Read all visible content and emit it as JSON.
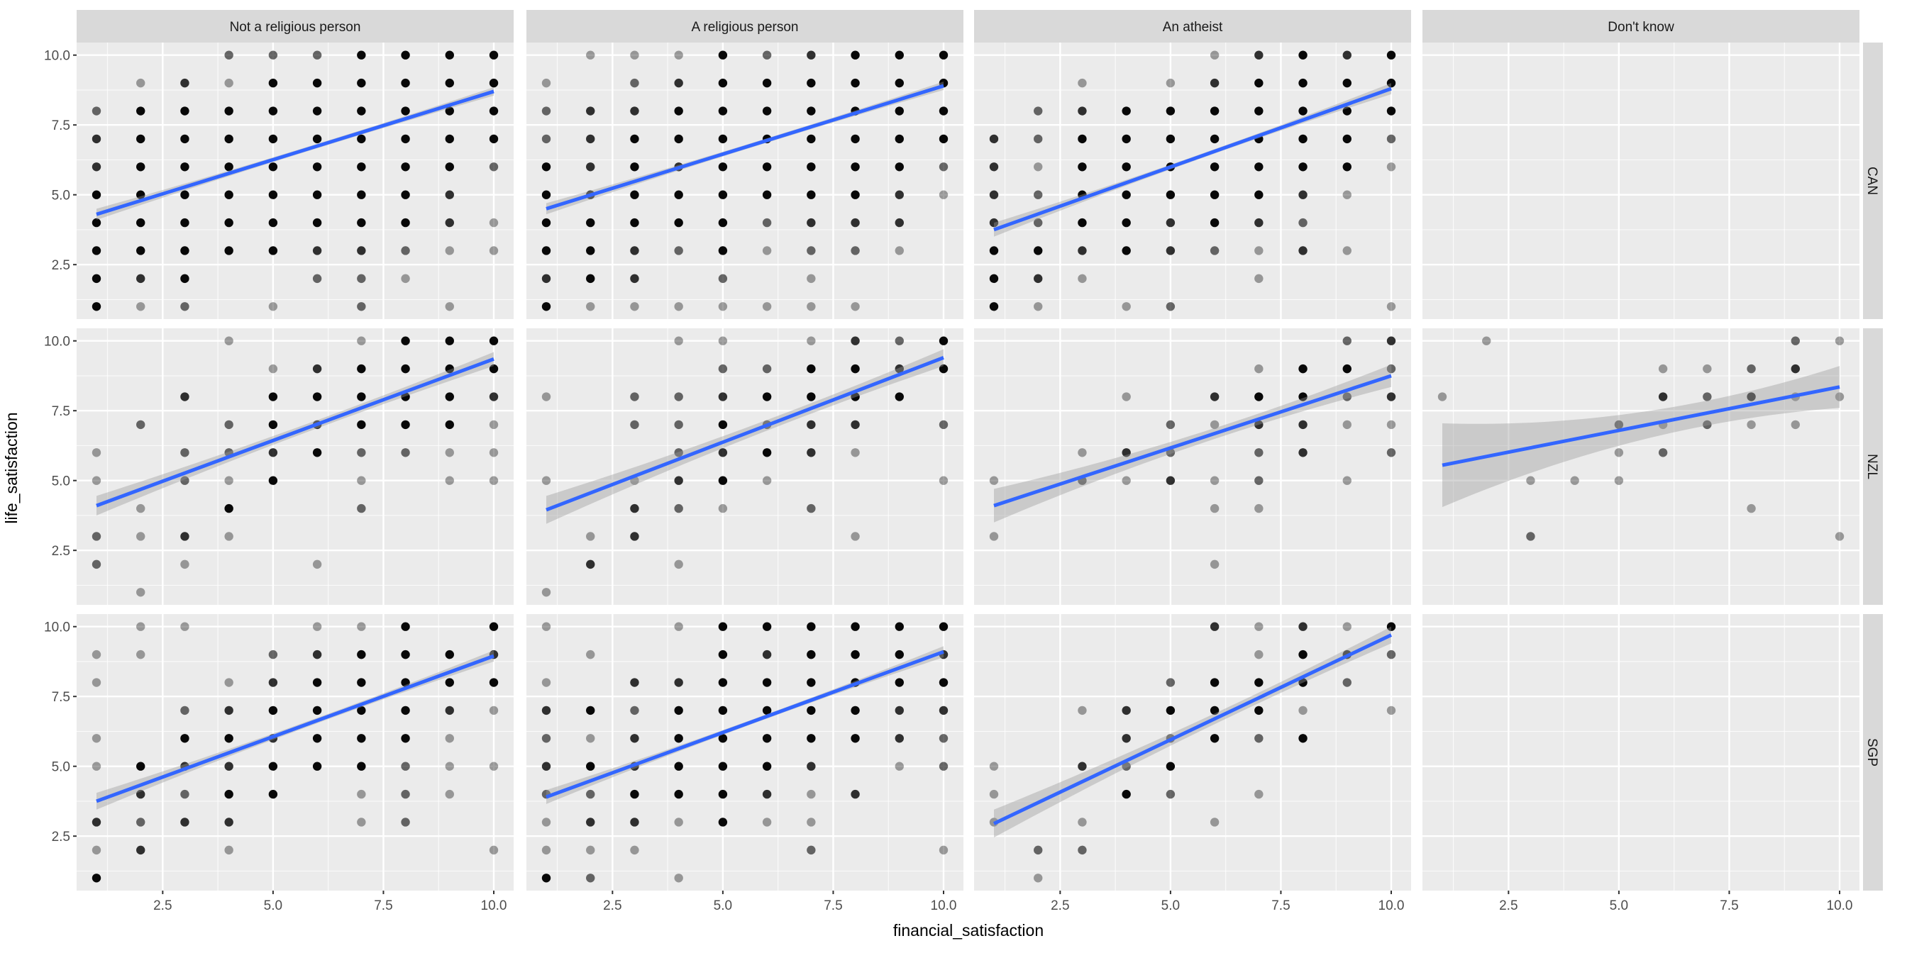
{
  "chart_data": {
    "type": "scatter",
    "subtype": "faceted scatter with linear smooth (lm) and confidence band",
    "xlabel": "financial_satisfaction",
    "ylabel": "life_satisfaction",
    "xlim": [
      0.55,
      10.45
    ],
    "ylim": [
      0.55,
      10.45
    ],
    "x_ticks": [
      "2.5",
      "5.0",
      "7.5",
      "10.0"
    ],
    "x_tick_values": [
      2.5,
      5.0,
      7.5,
      10.0
    ],
    "y_ticks": [
      "2.5",
      "5.0",
      "7.5",
      "10.0"
    ],
    "y_tick_values": [
      2.5,
      5.0,
      7.5,
      10.0
    ],
    "grid": true,
    "facet_cols": [
      "Not a religious person",
      "A religious person",
      "An atheist",
      "Don't know"
    ],
    "facet_rows": [
      "CAN",
      "NZL",
      "SGP"
    ],
    "point_encoding": "density_grid rows run y=10 down to y=1, characters run x=1..10; '.' = no point, digits 1-4 = overplotting darkness level",
    "colors": {
      "points": "#000000",
      "smooth_line": "#3366FF",
      "ribbon": "#999999",
      "panel_bg": "#EBEBEB",
      "strip_bg": "#D9D9D9"
    },
    "panels": [
      {
        "row": "CAN",
        "col": "Not a religious person",
        "density_grid": [
          "...2224444",
          ".131444444",
          "2444444444",
          "3444444444",
          "3444444442",
          "444444443.",
          "4444444431",
          "4444433211",
          "434..221..",
          "412.1.2.1."
        ],
        "fit": {
          "x": [
            1,
            10
          ],
          "y": [
            4.3,
            8.7
          ],
          "ci_halfwidth": [
            0.2,
            0.08,
            0.15
          ]
        }
      },
      {
        "row": "CAN",
        "col": "A religious person",
        "density_grid": [
          ".111423444",
          "1.23444444",
          "2334444444",
          "2344444444",
          "4343444442",
          "4344444431",
          "444442333.",
          "443241221.",
          "343.2.1...",
          "41111111.."
        ],
        "fit": {
          "x": [
            1,
            10
          ],
          "y": [
            4.5,
            8.9
          ],
          "ci_halfwidth": [
            0.2,
            0.08,
            0.15
          ]
        }
      },
      {
        "row": "CAN",
        "col": "An atheist",
        "density_grid": [
          ".....13434",
          "..1.134444",
          ".234444444",
          "3244444442",
          "3144444441",
          "324444431.",
          "32443432..",
          "443432131.",
          "431...1...",
          "41.12....1"
        ],
        "fit": {
          "x": [
            1,
            10
          ],
          "y": [
            3.75,
            8.8
          ],
          "ci_halfwidth": [
            0.25,
            0.08,
            0.2
          ]
        }
      },
      {
        "row": "CAN",
        "col": "Don't know",
        "density_grid": [],
        "fit": null
      },
      {
        "row": "NZL",
        "col": "Not a religious person",
        "density_grid": [
          "...1..1444",
          "....134444",
          "..3.444443",
          ".2.2434441",
          "1.22342211",
          "1.214.1.11",
          ".1.4..2...",
          "2131......",
          "2.1..1....",
          ".1........"
        ],
        "fit": {
          "x": [
            1,
            10
          ],
          "y": [
            4.1,
            9.35
          ],
          "ci_halfwidth": [
            0.35,
            0.15,
            0.25
          ]
        }
      },
      {
        "row": "NZL",
        "col": "A religious person",
        "density_grid": [
          "...11.1324",
          "....224434",
          "1.2234444.",
          "..224233.2",
          "...23431..",
          "1.1341...1",
          "..321.2...",
          ".13....1..",
          ".3.1......",
          "1........."
        ],
        "fit": {
          "x": [
            1,
            10
          ],
          "y": [
            3.95,
            9.4
          ],
          "ci_halfwidth": [
            0.5,
            0.2,
            0.3
          ]
        }
      },
      {
        "row": "NZL",
        "col": "An atheist",
        "density_grid": [
          "........23",
          "......1442",
          "...1.34423",
          "....213311",
          "..132.23.2",
          "1.21312.1.",
          ".....11...",
          "1.........",
          ".....1....",
          ".........."
        ],
        "fit": {
          "x": [
            1,
            10
          ],
          "y": [
            4.1,
            8.75
          ],
          "ci_halfwidth": [
            0.6,
            0.2,
            0.4
          ]
        }
      },
      {
        "row": "NZL",
        "col": "Don't know",
        "density_grid": [
          ".1......21",
          ".....1123.",
          "1....32311",
          "....21211.",
          "....12....",
          "..111.....",
          ".......1..",
          "..2......1",
          "..........",
          ".........."
        ],
        "fit": {
          "x": [
            1,
            10
          ],
          "y": [
            5.55,
            8.35
          ],
          "ci_halfwidth": [
            1.5,
            0.5,
            0.75
          ]
        }
      },
      {
        "row": "SGP",
        "col": "Not a religious person",
        "density_grid": [
          ".11..114.4",
          "11..234443",
          "1..1344444",
          "..23444431",
          "1.4434441.",
          "1433444211",
          ".3244.121.",
          "3233..12..",
          "13.1.....1",
          "4........."
        ],
        "fit": {
          "x": [
            1,
            10
          ],
          "y": [
            3.75,
            8.95
          ],
          "ci_halfwidth": [
            0.3,
            0.1,
            0.2
          ]
        }
      },
      {
        "row": "SGP",
        "col": "A religious person",
        "density_grid": [
          "1..1444444",
          ".1..434443",
          "1.33444444",
          "3424444433",
          "2134444432",
          "3434443.12",
          "22444313..",
          "1331411...",
          "111...2..1",
          "42.1......"
        ],
        "fit": {
          "x": [
            1,
            10
          ],
          "y": [
            3.9,
            9.1
          ],
          "ci_halfwidth": [
            0.25,
            0.08,
            0.2
          ]
        }
      },
      {
        "row": "SGP",
        "col": "An atheist",
        "density_grid": [
          ".....31314",
          "......1432",
          "....24442.",
          "..134441.1",
          "...32424..",
          "1.324.....",
          "1..42.1...",
          "1.1..1....",
          ".22.......",
          ".1........"
        ],
        "fit": {
          "x": [
            1,
            10
          ],
          "y": [
            2.95,
            9.7
          ],
          "ci_halfwidth": [
            0.5,
            0.2,
            0.3
          ]
        }
      },
      {
        "row": "SGP",
        "col": "Don't know",
        "density_grid": [],
        "fit": null
      }
    ]
  }
}
